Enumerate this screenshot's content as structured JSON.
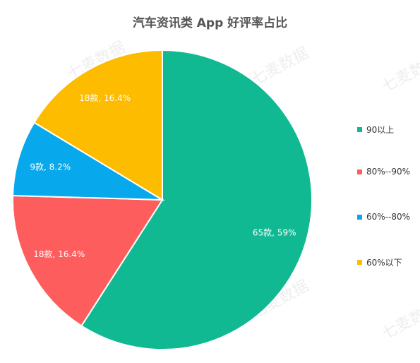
{
  "chart_data": {
    "type": "pie",
    "title": "汽车资讯类 App 好评率占比",
    "categories": [
      "90以上",
      "80%--90%",
      "60%--80%",
      "60%以下"
    ],
    "values": [
      65,
      18,
      9,
      18
    ],
    "percents": [
      "59%",
      "16.4%",
      "8.2%",
      "16.4%"
    ],
    "labels": [
      "65款, 59%",
      "18款, 16.4%",
      "9款, 8.2%",
      "18款, 16.4%"
    ],
    "colors": [
      "#10b991",
      "#fe5d5e",
      "#08a8ec",
      "#fdbc00"
    ],
    "legend_position": "right",
    "watermark": "七麦数据"
  }
}
